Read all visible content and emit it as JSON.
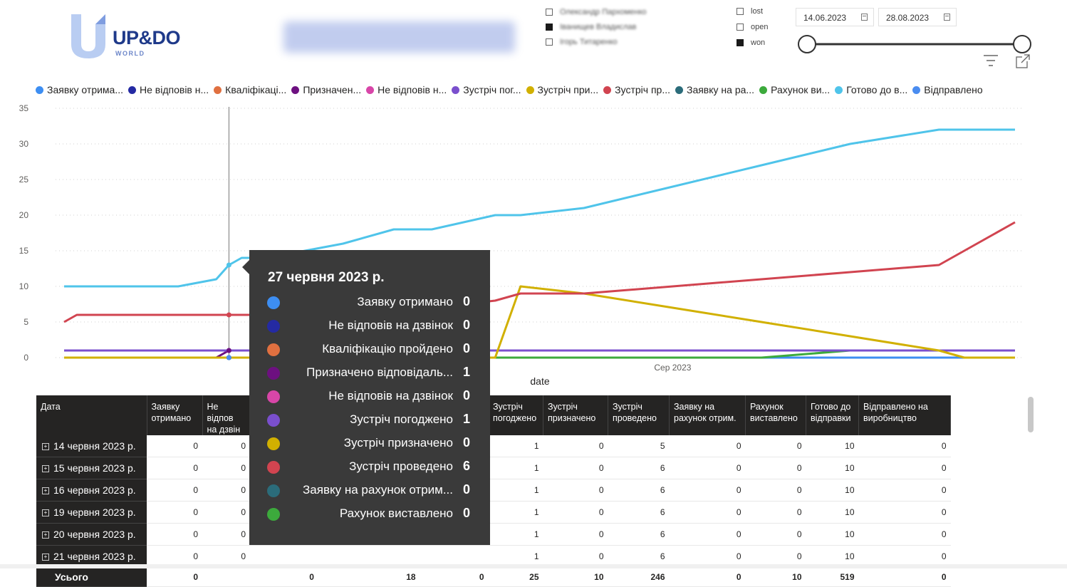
{
  "logo": {
    "text": "UP&DO",
    "sub": "WORLD"
  },
  "employees": [
    {
      "name": "Олександр Пархоменко",
      "checked": false
    },
    {
      "name": "Іванищев Владислав",
      "checked": true
    },
    {
      "name": "Ігорь Титаренко",
      "checked": false
    }
  ],
  "status_filter": [
    {
      "label": "lost",
      "checked": false
    },
    {
      "label": "open",
      "checked": false
    },
    {
      "label": "won",
      "checked": true
    }
  ],
  "date_range": {
    "start": "14.06.2023",
    "end": "28.08.2023"
  },
  "icons": {
    "filter": "filter-icon",
    "focus": "focus-mode-icon",
    "calendar": "calendar-icon",
    "expand": "expand-plus-icon"
  },
  "legend": [
    {
      "label": "Заявку отрима...",
      "color": "#3d8ef2"
    },
    {
      "label": "Не відповів н...",
      "color": "#242aa3"
    },
    {
      "label": "Кваліфікаці...",
      "color": "#e07040"
    },
    {
      "label": "Призначен...",
      "color": "#6d1080"
    },
    {
      "label": "Не відповів н...",
      "color": "#d846a8"
    },
    {
      "label": "Зустріч пог...",
      "color": "#7a4fcd"
    },
    {
      "label": "Зустріч при...",
      "color": "#d1b000"
    },
    {
      "label": "Зустріч пр...",
      "color": "#d14450"
    },
    {
      "label": "Заявку на ра...",
      "color": "#2b6c7a"
    },
    {
      "label": "Рахунок ви...",
      "color": "#3caa3c"
    },
    {
      "label": "Готово до в...",
      "color": "#4fc4ea"
    },
    {
      "label": "Відправлено",
      "color": "#4a8cf0"
    }
  ],
  "chart_data": {
    "type": "line",
    "xlabel": "date",
    "x_tick_labels": [
      "Сер 2023"
    ],
    "ylim": [
      0,
      35
    ],
    "y_ticks": [
      0,
      5,
      10,
      15,
      20,
      25,
      30,
      35
    ],
    "grid": true,
    "legend_position": "top",
    "x": [
      "2023-06-14",
      "2023-06-15",
      "2023-06-16",
      "2023-06-19",
      "2023-06-20",
      "2023-06-21",
      "2023-06-23",
      "2023-06-26",
      "2023-06-27",
      "2023-06-28",
      "2023-06-30",
      "2023-07-03",
      "2023-07-06",
      "2023-07-10",
      "2023-07-13",
      "2023-07-18",
      "2023-07-20",
      "2023-07-25",
      "2023-08-01",
      "2023-08-08",
      "2023-08-15",
      "2023-08-22",
      "2023-08-24",
      "2023-08-28"
    ],
    "series": [
      {
        "name": "Готово до відправки",
        "color": "#4fc4ea",
        "values": [
          10,
          10,
          10,
          10,
          10,
          10,
          10,
          11,
          13,
          14,
          14,
          15,
          16,
          18,
          18,
          20,
          20,
          21,
          24,
          27,
          30,
          32,
          32,
          32
        ]
      },
      {
        "name": "Зустріч проведено",
        "color": "#d14450",
        "values": [
          5,
          6,
          6,
          6,
          6,
          6,
          6,
          6,
          6,
          6,
          6,
          6,
          6,
          6,
          7,
          8,
          9,
          9,
          10,
          11,
          12,
          13,
          15,
          19
        ]
      },
      {
        "name": "Зустріч призначено",
        "color": "#d1b000",
        "values": [
          0,
          0,
          0,
          0,
          0,
          0,
          0,
          0,
          0,
          0,
          0,
          0,
          0,
          0,
          0,
          0,
          10,
          9,
          7,
          5,
          3,
          1,
          0,
          0
        ]
      },
      {
        "name": "Зустріч погоджено",
        "color": "#7a4fcd",
        "values": [
          1,
          1,
          1,
          1,
          1,
          1,
          1,
          1,
          1,
          1,
          1,
          1,
          1,
          1,
          1,
          1,
          1,
          1,
          1,
          1,
          1,
          1,
          1,
          1
        ]
      },
      {
        "name": "Призначено відповідальним",
        "color": "#6d1080",
        "values": [
          0,
          0,
          0,
          0,
          0,
          0,
          0,
          0,
          1,
          1,
          1,
          1,
          1,
          1,
          1,
          1,
          1,
          1,
          1,
          1,
          1,
          1,
          1,
          1
        ]
      },
      {
        "name": "Рахунок виставлено",
        "color": "#3caa3c",
        "values": [
          0,
          0,
          0,
          0,
          0,
          0,
          0,
          0,
          0,
          0,
          0,
          0,
          0,
          0,
          0,
          0,
          0,
          0,
          0,
          0,
          1,
          1,
          1,
          1
        ]
      },
      {
        "name": "Заявку отримано",
        "color": "#3d8ef2",
        "values": [
          0,
          0,
          0,
          0,
          0,
          0,
          0,
          0,
          0,
          0,
          0,
          0,
          0,
          0,
          0,
          0,
          0,
          0,
          0,
          0,
          0,
          0,
          0,
          0
        ]
      },
      {
        "name": "Відправлено",
        "color": "#4a8cf0",
        "values": [
          0,
          0,
          0,
          0,
          0,
          0,
          0,
          0,
          0,
          0,
          0,
          0,
          0,
          0,
          0,
          0,
          0,
          0,
          0,
          0,
          0,
          0,
          0,
          0
        ]
      }
    ]
  },
  "tooltip": {
    "title": "27 червня 2023 р.",
    "rows": [
      {
        "name": "Заявку отримано",
        "value": "0",
        "color": "#3d8ef2"
      },
      {
        "name": "Не відповів на дзвінок",
        "value": "0",
        "color": "#242aa3"
      },
      {
        "name": "Кваліфікацію пройдено",
        "value": "0",
        "color": "#e07040"
      },
      {
        "name": "Призначено відповідаль...",
        "value": "1",
        "color": "#6d1080"
      },
      {
        "name": "Не відповів на дзвінок",
        "value": "0",
        "color": "#d846a8"
      },
      {
        "name": "Зустріч погоджено",
        "value": "1",
        "color": "#7a4fcd"
      },
      {
        "name": "Зустріч призначено",
        "value": "0",
        "color": "#d1b000"
      },
      {
        "name": "Зустріч проведено",
        "value": "6",
        "color": "#d14450"
      },
      {
        "name": "Заявку на рахунок отрим...",
        "value": "0",
        "color": "#2b6c7a"
      },
      {
        "name": "Рахунок виставлено",
        "value": "0",
        "color": "#3caa3c"
      }
    ]
  },
  "table": {
    "headers": [
      "Дата",
      "Заявку отримано",
      "Не відпов на дзвін",
      "",
      "",
      "",
      "Зустріч погоджено",
      "Зустріч призначено",
      "Зустріч проведено",
      "Заявку на рахунок отрим.",
      "Рахунок виставлено",
      "Готово до відправки",
      "Відправлено на виробництво"
    ],
    "rows": [
      {
        "date": "14 червня 2023 р.",
        "cells": [
          "0",
          "0",
          "",
          "",
          "",
          "1",
          "0",
          "5",
          "0",
          "0",
          "10",
          "0"
        ]
      },
      {
        "date": "15 червня 2023 р.",
        "cells": [
          "0",
          "0",
          "",
          "",
          "",
          "1",
          "0",
          "6",
          "0",
          "0",
          "10",
          "0"
        ]
      },
      {
        "date": "16 червня 2023 р.",
        "cells": [
          "0",
          "0",
          "",
          "",
          "",
          "1",
          "0",
          "6",
          "0",
          "0",
          "10",
          "0"
        ]
      },
      {
        "date": "19 червня 2023 р.",
        "cells": [
          "0",
          "0",
          "",
          "",
          "",
          "1",
          "0",
          "6",
          "0",
          "0",
          "10",
          "0"
        ]
      },
      {
        "date": "20 червня 2023 р.",
        "cells": [
          "0",
          "0",
          "",
          "",
          "",
          "1",
          "0",
          "6",
          "0",
          "0",
          "10",
          "0"
        ]
      },
      {
        "date": "21 червня 2023 р.",
        "cells": [
          "0",
          "0",
          "",
          "",
          "",
          "1",
          "0",
          "6",
          "0",
          "0",
          "10",
          "0"
        ]
      }
    ],
    "total": {
      "label": "Усього",
      "cells": [
        "0",
        "0",
        "",
        "0",
        "18",
        "0",
        "25",
        "10",
        "246",
        "0",
        "10",
        "519",
        "0"
      ]
    }
  }
}
